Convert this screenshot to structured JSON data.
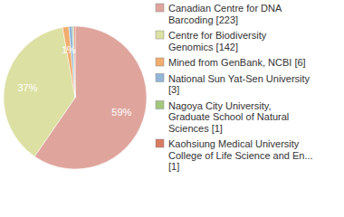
{
  "chart_data": {
    "type": "pie",
    "categories": [
      "Canadian Centre for DNA Barcoding [223]",
      "Centre for Biodiversity Genomics [142]",
      "Mined from GenBank, NCBI [6]",
      "National Sun Yat-Sen University [3]",
      "Nagoya City University, Graduate School of Natural Sciences [1]",
      "Kaohsiung Medical University College of Life Science and En... [1]"
    ],
    "values": [
      59.3,
      37.4,
      1.4,
      0.8,
      0.3,
      0.3
    ],
    "value_labels": [
      "59%",
      "37%",
      "1%",
      null,
      null,
      null
    ],
    "colors": [
      "#dfa59d",
      "#dce0a2",
      "#f0ad6e",
      "#93b6d6",
      "#a3c77f",
      "#d97b62"
    ],
    "data_labels": true,
    "legend": "right"
  }
}
